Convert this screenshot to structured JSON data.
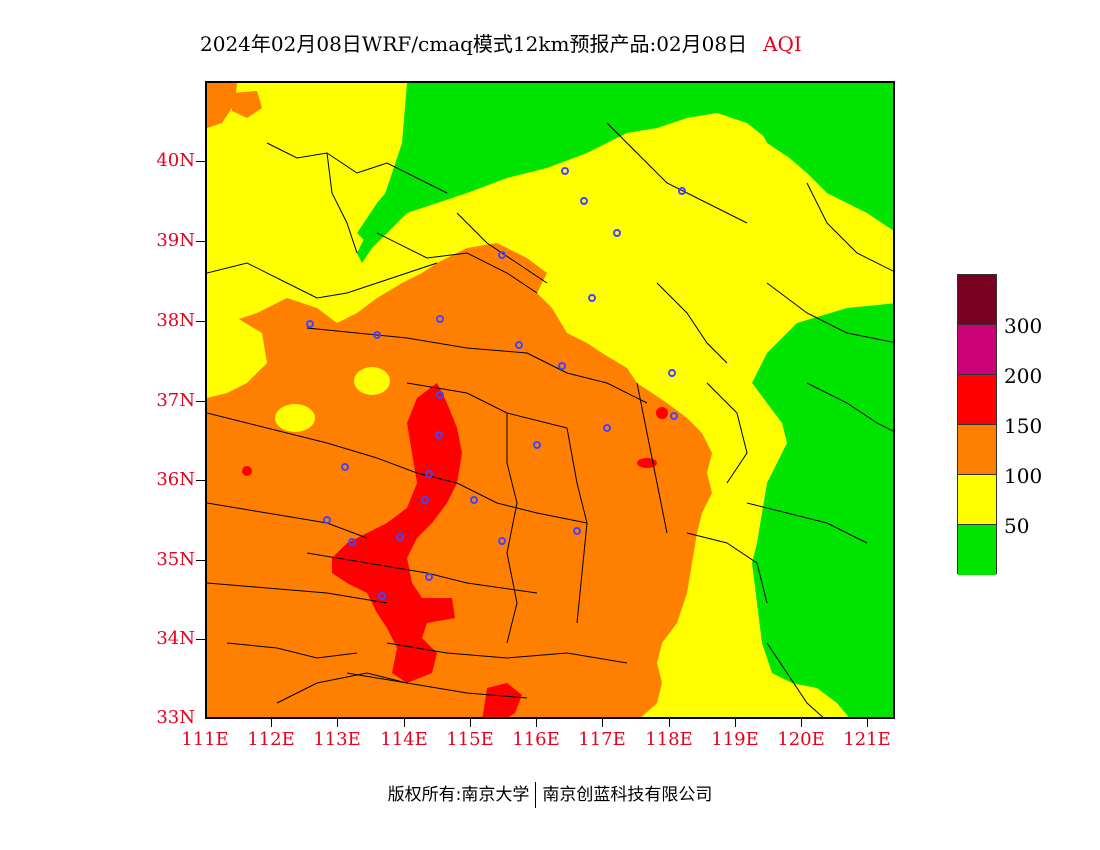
{
  "title": {
    "main": "2024年02月08日WRF/cmaq模式12km预报产品:02月08日",
    "variable": "AQI"
  },
  "axes": {
    "latitudes": [
      "40N",
      "39N",
      "38N",
      "37N",
      "36N",
      "35N",
      "34N",
      "33N"
    ],
    "longitudes": [
      "111E",
      "112E",
      "113E",
      "114E",
      "115E",
      "116E",
      "117E",
      "118E",
      "119E",
      "120E",
      "121E"
    ]
  },
  "legend": {
    "colors": [
      "#7a0022",
      "#cc0077",
      "#ff0000",
      "#ff7f00",
      "#ffff00",
      "#00e400"
    ],
    "labels": [
      "300",
      "200",
      "150",
      "100",
      "50"
    ]
  },
  "credit": {
    "left": "版权所有:南京大学",
    "right": "南京创蓝科技有限公司"
  }
}
